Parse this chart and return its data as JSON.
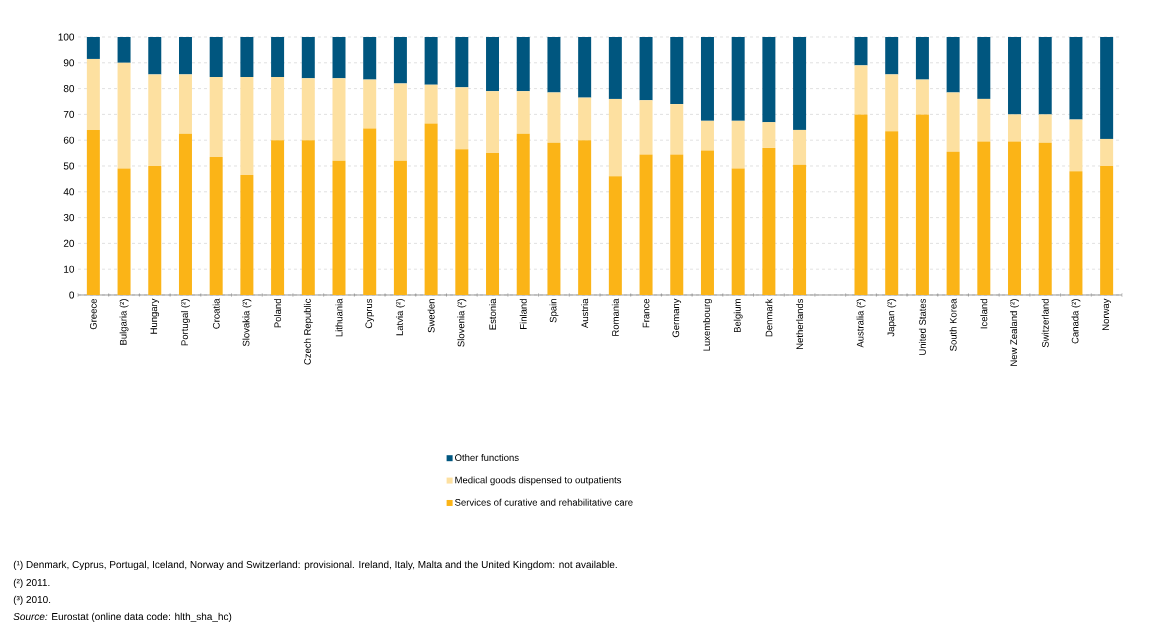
{
  "chart_data": {
    "type": "bar",
    "stacked": true,
    "categories": [
      "Greece",
      "Bulgaria (²)",
      "Hungary",
      "Portugal (²)",
      "Croatia",
      "Slovakia (²)",
      "Poland",
      "Czech Republic",
      "Lithuania",
      "Cyprus",
      "Latvia (²)",
      "Sweden",
      "Slovenia (²)",
      "Estonia",
      "Finland",
      "Spain",
      "Austria",
      "Romania",
      "France",
      "Germany",
      "Luxembourg",
      "Belgium",
      "Denmark",
      "Netherlands",
      null,
      "Australia (²)",
      "Japan (²)",
      "United States",
      "South Korea",
      "Iceland",
      "New Zealand (²)",
      "Switzerland",
      "Canada (²)",
      "Norway"
    ],
    "series": [
      {
        "name": "Services of curative and rehabilitative care",
        "color": "#fbb417",
        "values": [
          64,
          49,
          50,
          62.5,
          53.5,
          46.5,
          60,
          60,
          52,
          64.5,
          52,
          66.5,
          56.5,
          55,
          62.5,
          59,
          60,
          46,
          54.5,
          54.5,
          56,
          49,
          57,
          50.5,
          null,
          70,
          63.5,
          70,
          55.5,
          59.5,
          59.5,
          59,
          48,
          50
        ]
      },
      {
        "name": "Medical goods dispensed to outpatients",
        "color": "#fde0a0",
        "values": [
          27.5,
          41,
          35.5,
          23,
          31,
          38,
          24.5,
          24,
          32,
          19,
          30,
          15,
          24,
          24,
          16.5,
          19.5,
          16.5,
          30,
          21,
          19.5,
          11.5,
          18.5,
          10,
          13.5,
          null,
          19,
          22,
          13.5,
          23,
          16.5,
          10.5,
          11,
          20,
          10.5
        ]
      },
      {
        "name": "Other functions",
        "color": "#00567f",
        "values": [
          8.5,
          10,
          14.5,
          14.5,
          15.5,
          15.5,
          15.5,
          16,
          16,
          16.5,
          18,
          18.5,
          19.5,
          21,
          21,
          21.5,
          23.5,
          24,
          24.5,
          26,
          32.5,
          32.5,
          33,
          36,
          null,
          11,
          14.5,
          16.5,
          21.5,
          24,
          30,
          30,
          32,
          39.5
        ]
      }
    ],
    "ylim": [
      0,
      100
    ],
    "yticks": [
      0,
      10,
      20,
      30,
      40,
      50,
      60,
      70,
      80,
      90,
      100
    ],
    "grid": "y",
    "legend": "bottom",
    "annotations": [
      "(¹) Denmark, Cyprus, Portugal, Iceland, Norway and Switzerland: provisional. Ireland, Italy, Malta and the United Kingdom: not available.",
      "(²) 2011.",
      "(³) 2010.",
      "*Source:* Eurostat (online data code: hlth_sha_hc)"
    ]
  }
}
